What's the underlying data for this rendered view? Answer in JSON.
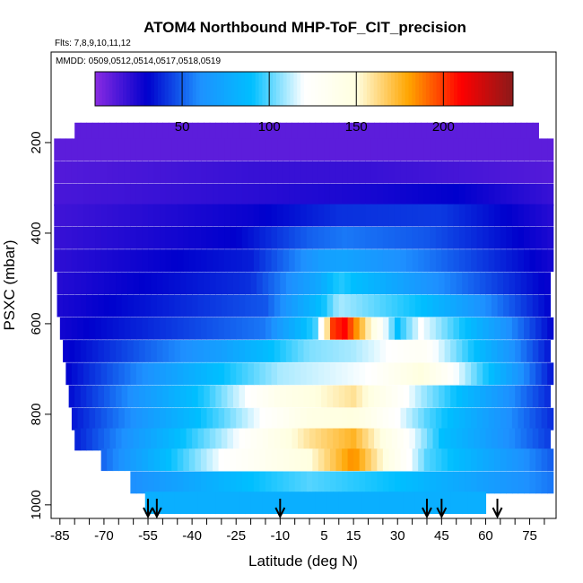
{
  "chart_data": {
    "type": "heatmap",
    "title": "ATOM4 Northbound MHP-ToF_CIT_precision",
    "flights_label": "Flts: 7,8,9,10,11,12",
    "dates_label": "MMDD: 0509,0512,0514,0517,0518,0519",
    "xlabel": "Latitude (deg N)",
    "ylabel": "PSXC (mbar)",
    "xlim": [
      -88,
      84
    ],
    "ylim": [
      1030,
      0
    ],
    "x_ticks": [
      -85,
      -70,
      -55,
      -40,
      -25,
      -10,
      5,
      15,
      30,
      45,
      60,
      75
    ],
    "y_ticks": [
      200,
      400,
      600,
      800,
      1000
    ],
    "colorbar": {
      "range": [
        0,
        240
      ],
      "ticks": [
        50,
        100,
        150,
        200
      ],
      "stops": [
        "#8a2be2",
        "#0000cd",
        "#1e90ff",
        "#00bfff",
        "#ffffff",
        "#ffffe0",
        "#ffa500",
        "#ff0000",
        "#8b1a1a"
      ]
    },
    "level_rows": [
      {
        "p": 180,
        "xmin": -80,
        "xmax": 78,
        "profile": [
          [
            -80,
            10
          ],
          [
            78,
            10
          ]
        ]
      },
      {
        "p": 215,
        "xmin": -87,
        "xmax": 82,
        "profile": [
          [
            -87,
            10
          ],
          [
            82,
            10
          ]
        ]
      },
      {
        "p": 265,
        "xmin": -87,
        "xmax": 82,
        "profile": [
          [
            -87,
            12
          ],
          [
            -20,
            18
          ],
          [
            20,
            18
          ],
          [
            82,
            12
          ]
        ]
      },
      {
        "p": 315,
        "xmin": -87,
        "xmax": 82,
        "profile": [
          [
            -87,
            14
          ],
          [
            -10,
            22
          ],
          [
            20,
            25
          ],
          [
            50,
            30
          ],
          [
            82,
            18
          ]
        ]
      },
      {
        "p": 360,
        "xmin": -87,
        "xmax": 82,
        "profile": [
          [
            -87,
            16
          ],
          [
            -20,
            28
          ],
          [
            10,
            40
          ],
          [
            45,
            42
          ],
          [
            82,
            22
          ]
        ]
      },
      {
        "p": 410,
        "xmin": -87,
        "xmax": 82,
        "profile": [
          [
            -87,
            18
          ],
          [
            -25,
            30
          ],
          [
            0,
            50
          ],
          [
            12,
            55
          ],
          [
            40,
            48
          ],
          [
            82,
            24
          ]
        ]
      },
      {
        "p": 460,
        "xmin": -87,
        "xmax": 82,
        "profile": [
          [
            -87,
            20
          ],
          [
            -20,
            36
          ],
          [
            5,
            70
          ],
          [
            12,
            72
          ],
          [
            40,
            55
          ],
          [
            82,
            26
          ]
        ]
      },
      {
        "p": 510,
        "xmin": -86,
        "xmax": 82,
        "profile": [
          [
            -86,
            22
          ],
          [
            -20,
            40
          ],
          [
            3,
            75
          ],
          [
            10,
            95
          ],
          [
            38,
            65
          ],
          [
            82,
            28
          ]
        ]
      },
      {
        "p": 560,
        "xmin": -86,
        "xmax": 82,
        "profile": [
          [
            -86,
            24
          ],
          [
            -15,
            48
          ],
          [
            5,
            92
          ],
          [
            10,
            110
          ],
          [
            38,
            90
          ],
          [
            82,
            30
          ]
        ]
      },
      {
        "p": 610,
        "xmin": -85,
        "xmax": 82,
        "profile": [
          [
            -85,
            26
          ],
          [
            -15,
            55
          ],
          [
            3,
            100
          ],
          [
            8,
            200
          ],
          [
            12,
            210
          ],
          [
            30,
            90
          ],
          [
            38,
            120
          ],
          [
            82,
            32
          ]
        ]
      },
      {
        "p": 660,
        "xmin": -84,
        "xmax": 82,
        "profile": [
          [
            -84,
            28
          ],
          [
            -30,
            70
          ],
          [
            0,
            105
          ],
          [
            15,
            110
          ],
          [
            38,
            130
          ],
          [
            82,
            34
          ]
        ]
      },
      {
        "p": 710,
        "xmin": -83,
        "xmax": 82,
        "profile": [
          [
            -83,
            30
          ],
          [
            -35,
            85
          ],
          [
            -10,
            110
          ],
          [
            20,
            120
          ],
          [
            38,
            150
          ],
          [
            82,
            36
          ]
        ]
      },
      {
        "p": 760,
        "xmin": -82,
        "xmax": 82,
        "profile": [
          [
            -82,
            32
          ],
          [
            -35,
            95
          ],
          [
            -10,
            140
          ],
          [
            15,
            160
          ],
          [
            38,
            110
          ],
          [
            82,
            38
          ]
        ]
      },
      {
        "p": 810,
        "xmin": -81,
        "xmax": 82,
        "profile": [
          [
            -81,
            34
          ],
          [
            -30,
            100
          ],
          [
            0,
            145
          ],
          [
            15,
            150
          ],
          [
            40,
            100
          ],
          [
            82,
            40
          ]
        ]
      },
      {
        "p": 855,
        "xmin": -80,
        "xmax": 82,
        "profile": [
          [
            -80,
            36
          ],
          [
            -30,
            110
          ],
          [
            0,
            160
          ],
          [
            15,
            175
          ],
          [
            45,
            90
          ],
          [
            82,
            42
          ]
        ]
      },
      {
        "p": 900,
        "xmin": -71,
        "xmax": 82,
        "profile": [
          [
            -71,
            50
          ],
          [
            -30,
            120
          ],
          [
            0,
            150
          ],
          [
            15,
            185
          ],
          [
            40,
            100
          ],
          [
            82,
            50
          ]
        ]
      },
      {
        "p": 950,
        "xmin": -61,
        "xmax": 82,
        "profile": [
          [
            -61,
            60
          ],
          [
            -20,
            90
          ],
          [
            0,
            100
          ],
          [
            30,
            90
          ],
          [
            82,
            55
          ]
        ]
      },
      {
        "p": 995,
        "xmin": -56,
        "xmax": 60,
        "profile": [
          [
            -56,
            80
          ],
          [
            60,
            80
          ]
        ]
      }
    ],
    "marker_lats": [
      -55,
      -52,
      -10,
      40,
      45,
      64
    ]
  }
}
